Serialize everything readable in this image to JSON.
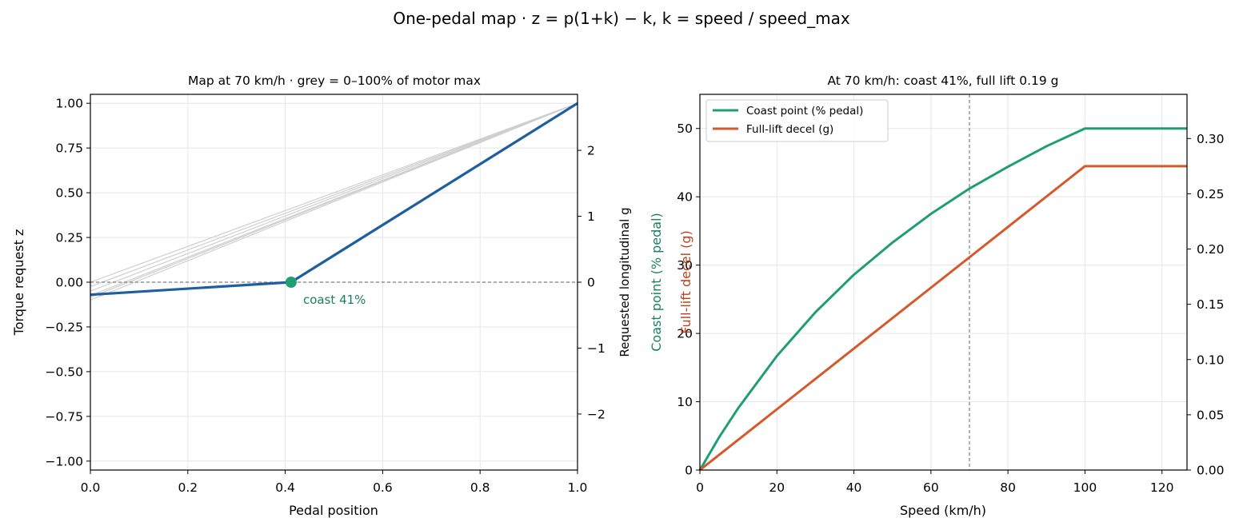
{
  "suptitle": "One-pedal map  ·  z = p(1+k) − k,  k = speed / speed_max",
  "colors": {
    "blue": "#1f5fa0",
    "teal": "#1f9e74",
    "orange": "#d45a2c",
    "grey_line": "#cfcfcf",
    "ref": "#7f7f7f",
    "grid": "#e6e6e6",
    "coast_text": "#1a7f5e",
    "decel_label": "#b5411e"
  },
  "chart_data": [
    {
      "type": "line",
      "title": "Map at 70 km/h  ·  grey = 0–100% of motor max",
      "xlabel": "Pedal position",
      "ylabel": "Torque request  z",
      "ylabel_right": "Requested longitudinal g",
      "xlim": [
        0,
        1.0
      ],
      "ylim": [
        -1.05,
        1.05
      ],
      "ylim_right": [
        -2.85,
        2.85
      ],
      "xticks": [
        "0.0",
        "0.2",
        "0.4",
        "0.6",
        "0.8",
        "1.0"
      ],
      "yticks": [
        "−1.00",
        "−0.75",
        "−0.50",
        "−0.25",
        "0.00",
        "0.25",
        "0.50",
        "0.75",
        "1.00"
      ],
      "yticks_right": [
        "−2",
        "−1",
        "0",
        "1",
        "2"
      ],
      "grid": true,
      "grey_lines": [
        {
          "x": [
            0,
            1.0
          ],
          "y": [
            0.0,
            1.0
          ]
        },
        {
          "x": [
            0,
            1.0
          ],
          "y": [
            -0.025,
            1.0
          ]
        },
        {
          "x": [
            0,
            1.0
          ],
          "y": [
            -0.05,
            1.0
          ]
        },
        {
          "x": [
            0,
            1.0
          ],
          "y": [
            -0.075,
            1.0
          ]
        },
        {
          "x": [
            0,
            1.0
          ],
          "y": [
            -0.085,
            1.0
          ]
        },
        {
          "x": [
            0,
            1.0
          ],
          "y": [
            -0.1,
            1.0
          ]
        }
      ],
      "series": [
        {
          "x": [
            0,
            0.412,
            1.0
          ],
          "y": [
            -0.07,
            0.0,
            1.0
          ]
        }
      ],
      "reference_line_y": 0,
      "marker": {
        "x": 0.412,
        "y": 0.0
      },
      "annotation": "coast 41%"
    },
    {
      "type": "line",
      "title": "At 70 km/h: coast 41%, full lift 0.19 g",
      "xlabel": "Speed (km/h)",
      "ylabel": "Coast point (% pedal)",
      "ylabel_right": "Full-lift decel (g)",
      "xlim": [
        0,
        126.5
      ],
      "ylim": [
        0,
        55
      ],
      "ylim_right": [
        0,
        0.34
      ],
      "xticks": [
        "0",
        "20",
        "40",
        "60",
        "80",
        "100",
        "120"
      ],
      "yticks": [
        "0",
        "10",
        "20",
        "30",
        "40",
        "50"
      ],
      "yticks_right": [
        "0.00",
        "0.05",
        "0.10",
        "0.15",
        "0.20",
        "0.25",
        "0.30"
      ],
      "grid": true,
      "legend_position": "top-left",
      "vline_x": 70,
      "series": [
        {
          "name": "Coast point (% pedal)",
          "axis": "left",
          "x": [
            0,
            5,
            10,
            20,
            30,
            40,
            50,
            60,
            70,
            80,
            90,
            100,
            110,
            126.5
          ],
          "y": [
            0,
            4.8,
            9.1,
            16.7,
            23.1,
            28.6,
            33.3,
            37.5,
            41.2,
            44.4,
            47.4,
            50.0,
            50.0,
            50.0
          ]
        },
        {
          "name": "Full-lift decel (g)",
          "axis": "right",
          "x": [
            0,
            100,
            126.5
          ],
          "y": [
            0,
            0.275,
            0.275
          ]
        }
      ]
    }
  ]
}
